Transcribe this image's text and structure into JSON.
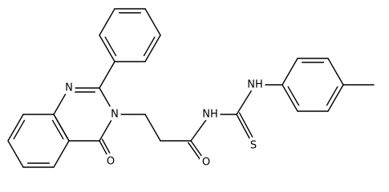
{
  "molecule": {
    "atoms": [
      {
        "label": "N"
      },
      {
        "label": "N"
      },
      {
        "label": "O"
      },
      {
        "label": "O"
      },
      {
        "label": "NH"
      },
      {
        "label": "NH"
      },
      {
        "label": "S"
      }
    ]
  }
}
